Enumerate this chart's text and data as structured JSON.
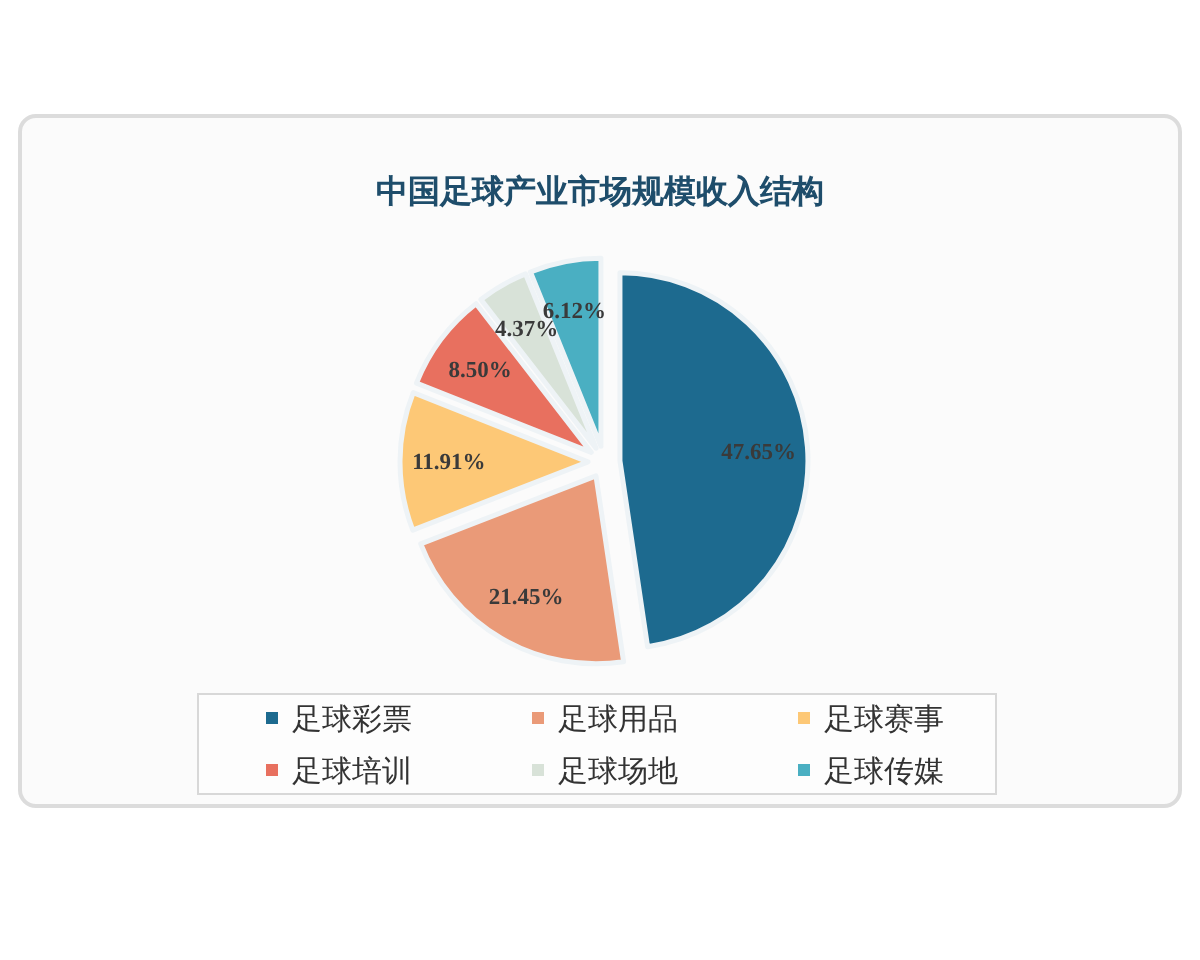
{
  "chart_data": {
    "type": "pie",
    "title": "中国足球产业市场规模收入结构",
    "categories": [
      "足球彩票",
      "足球用品",
      "足球赛事",
      "足球培训",
      "足球场地",
      "足球传媒"
    ],
    "values": [
      47.65,
      21.45,
      11.91,
      8.5,
      4.37,
      6.12
    ],
    "colors": [
      "#1d6a8f",
      "#ea9a78",
      "#fdc876",
      "#e8705f",
      "#d8e2d8",
      "#4aafc2"
    ],
    "value_labels": [
      "47.65%",
      "21.45%",
      "11.91%",
      "8.50%",
      "4.37%",
      "6.12%"
    ],
    "legend": "bottom"
  }
}
